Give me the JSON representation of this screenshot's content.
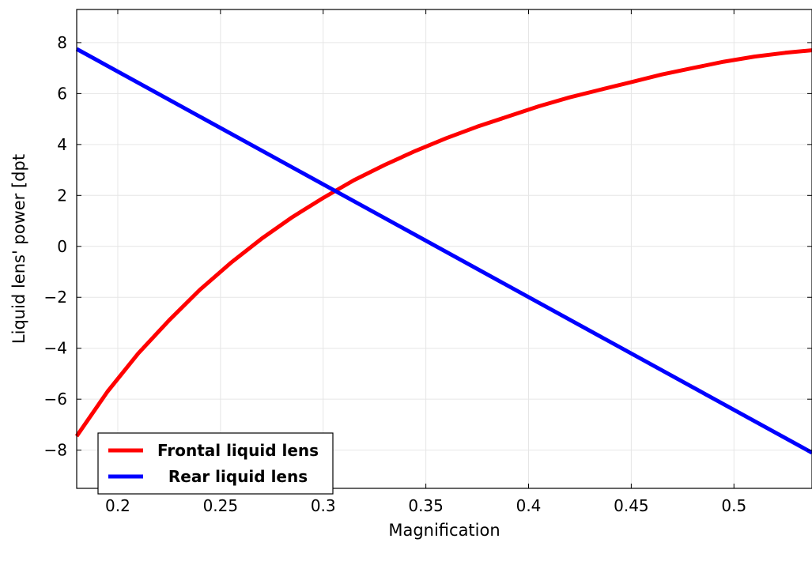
{
  "chart_data": {
    "type": "line",
    "title": "",
    "xlabel": "Magnification",
    "ylabel": "Liquid lens' power [dpt",
    "xlim": [
      0.18,
      0.538
    ],
    "ylim": [
      -9.5,
      9.3
    ],
    "grid": true,
    "legend_position": "bottom-left",
    "x_ticks": [
      0.2,
      0.25,
      0.3,
      0.35,
      0.4,
      0.45,
      0.5
    ],
    "x_tick_labels": [
      "0.2",
      "0.25",
      "0.3",
      "0.35",
      "0.4",
      "0.45",
      "0.5"
    ],
    "y_ticks": [
      -8,
      -6,
      -4,
      -2,
      0,
      2,
      4,
      6,
      8
    ],
    "y_tick_labels": [
      "−8",
      "−6",
      "−4",
      "−2",
      "0",
      "2",
      "4",
      "6",
      "8"
    ],
    "series": [
      {
        "name": "Frontal liquid lens",
        "color": "#ff0000",
        "x": [
          0.18,
          0.195,
          0.21,
          0.225,
          0.24,
          0.255,
          0.27,
          0.285,
          0.3,
          0.315,
          0.33,
          0.345,
          0.36,
          0.375,
          0.39,
          0.405,
          0.42,
          0.435,
          0.45,
          0.465,
          0.48,
          0.495,
          0.51,
          0.525,
          0.538
        ],
        "y": [
          -7.45,
          -5.7,
          -4.2,
          -2.9,
          -1.7,
          -0.65,
          0.3,
          1.15,
          1.9,
          2.6,
          3.2,
          3.75,
          4.25,
          4.7,
          5.1,
          5.5,
          5.85,
          6.15,
          6.45,
          6.75,
          7.0,
          7.25,
          7.45,
          7.6,
          7.7
        ]
      },
      {
        "name": "Rear liquid lens",
        "color": "#0000ff",
        "x": [
          0.18,
          0.538
        ],
        "y": [
          7.75,
          -8.1
        ]
      }
    ]
  }
}
